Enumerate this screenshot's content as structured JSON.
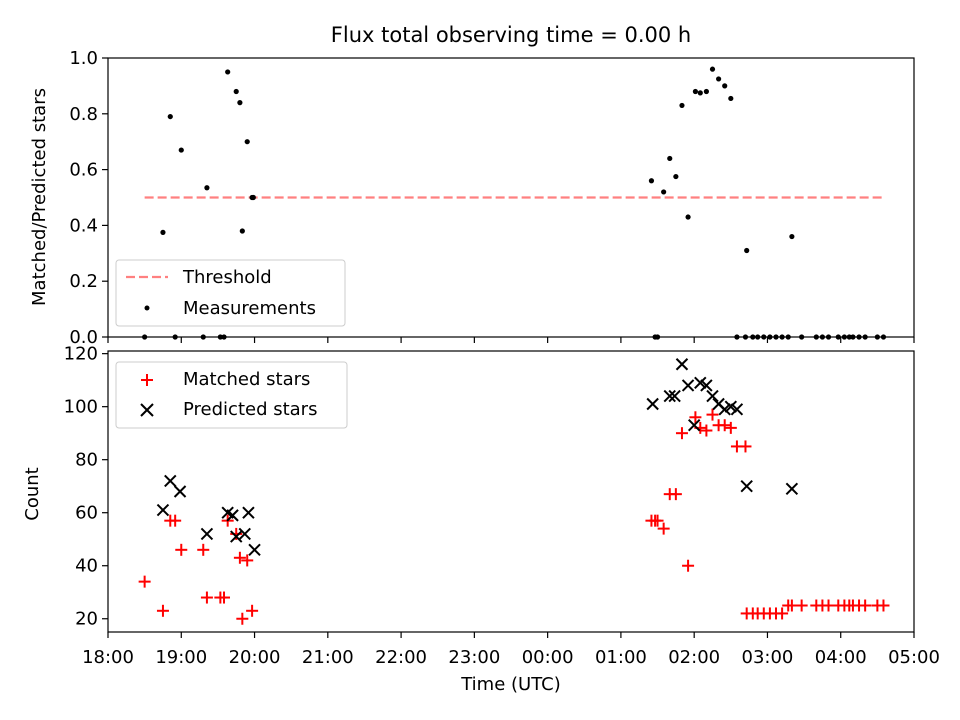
{
  "chart_data": [
    {
      "type": "scatter",
      "title": "Flux total observing time = 0.00 h",
      "xlabel": "",
      "ylabel": "Matched/Predicted stars",
      "ylim": [
        0,
        1.0
      ],
      "xlim": [
        "18:00",
        "05:00"
      ],
      "xticks": [
        "18:00",
        "19:00",
        "20:00",
        "21:00",
        "22:00",
        "23:00",
        "00:00",
        "01:00",
        "02:00",
        "03:00",
        "04:00",
        "05:00"
      ],
      "yticks": [
        "0.0",
        "0.2",
        "0.4",
        "0.6",
        "0.8",
        "1.0"
      ],
      "legend_position": "lower-left",
      "grid": false,
      "threshold": {
        "name": "Threshold",
        "value": 0.5,
        "x_start": "18:30",
        "x_end": "04:35",
        "color": "#ff8080"
      },
      "series": [
        {
          "name": "Measurements",
          "color": "#000000",
          "marker": "dot",
          "x": [
            "18:30",
            "18:45",
            "18:51",
            "18:55",
            "19:00",
            "19:18",
            "19:21",
            "19:32",
            "19:35",
            "19:38",
            "19:45",
            "19:48",
            "19:50",
            "19:54",
            "19:58",
            "19:59",
            "01:25",
            "01:28",
            "01:30",
            "01:35",
            "01:40",
            "01:45",
            "01:50",
            "01:55",
            "02:01",
            "02:05",
            "02:10",
            "02:15",
            "02:20",
            "02:25",
            "02:30",
            "02:35",
            "02:42",
            "02:43",
            "02:48",
            "02:52",
            "02:57",
            "03:02",
            "03:07",
            "03:12",
            "03:17",
            "03:20",
            "03:28",
            "03:40",
            "03:45",
            "03:50",
            "03:58",
            "04:03",
            "04:07",
            "04:10",
            "04:15",
            "04:20",
            "04:30",
            "04:35"
          ],
          "y": [
            0.0,
            0.375,
            0.79,
            0.0,
            0.67,
            0.0,
            0.535,
            0.0,
            0.0,
            0.95,
            0.88,
            0.84,
            0.38,
            0.7,
            0.5,
            0.5,
            0.56,
            0.0,
            0.0,
            0.52,
            0.64,
            0.575,
            0.83,
            0.43,
            0.88,
            0.875,
            0.88,
            0.96,
            0.925,
            0.9,
            0.855,
            0.0,
            0.0,
            0.31,
            0.0,
            0.0,
            0.0,
            0.0,
            0.0,
            0.0,
            0.0,
            0.36,
            0.0,
            0.0,
            0.0,
            0.0,
            0.0,
            0.0,
            0.0,
            0.0,
            0.0,
            0.0,
            0.0,
            0.0
          ]
        }
      ]
    },
    {
      "type": "scatter",
      "title": "",
      "xlabel": "Time (UTC)",
      "ylabel": "Count",
      "ylim": [
        15,
        121
      ],
      "xlim": [
        "18:00",
        "05:00"
      ],
      "xticks": [
        "18:00",
        "19:00",
        "20:00",
        "21:00",
        "22:00",
        "23:00",
        "00:00",
        "01:00",
        "02:00",
        "03:00",
        "04:00",
        "05:00"
      ],
      "yticks": [
        "20",
        "40",
        "60",
        "80",
        "100",
        "120"
      ],
      "legend_position": "upper-left",
      "grid": false,
      "series": [
        {
          "name": "Matched stars",
          "color": "#ff0000",
          "marker": "plus",
          "x": [
            "18:30",
            "18:45",
            "18:51",
            "18:55",
            "19:00",
            "19:18",
            "19:21",
            "19:32",
            "19:35",
            "19:38",
            "19:45",
            "19:48",
            "19:50",
            "19:54",
            "19:58",
            "01:25",
            "01:28",
            "01:30",
            "01:35",
            "01:40",
            "01:45",
            "01:50",
            "01:55",
            "02:01",
            "02:05",
            "02:10",
            "02:15",
            "02:20",
            "02:25",
            "02:30",
            "02:35",
            "02:42",
            "02:43",
            "02:48",
            "02:52",
            "02:57",
            "03:02",
            "03:07",
            "03:12",
            "03:17",
            "03:20",
            "03:28",
            "03:40",
            "03:45",
            "03:50",
            "03:58",
            "04:03",
            "04:07",
            "04:10",
            "04:15",
            "04:20",
            "04:30",
            "04:35"
          ],
          "y": [
            34,
            23,
            57,
            57,
            46,
            46,
            28,
            28,
            28,
            57,
            52,
            43,
            20,
            42,
            23,
            57,
            57,
            57,
            54,
            67,
            67,
            90,
            40,
            96,
            92,
            91,
            97,
            93,
            93,
            92,
            85,
            85,
            22,
            22,
            22,
            22,
            22,
            22,
            22,
            25,
            25,
            25,
            25,
            25,
            25,
            25,
            25,
            25,
            25,
            25,
            25,
            25,
            25
          ]
        },
        {
          "name": "Predicted stars",
          "color": "#000000",
          "marker": "x",
          "x": [
            "18:45",
            "18:51",
            "18:59",
            "19:21",
            "19:38",
            "19:42",
            "19:45",
            "19:52",
            "19:55",
            "20:00",
            "01:26",
            "01:40",
            "01:44",
            "01:50",
            "01:55",
            "02:00",
            "02:05",
            "02:10",
            "02:15",
            "02:20",
            "02:25",
            "02:30",
            "02:35",
            "02:43",
            "03:20"
          ],
          "y": [
            61,
            72,
            68,
            52,
            60,
            59,
            51,
            52,
            60,
            46,
            101,
            104,
            104,
            116,
            108,
            93,
            109,
            108,
            104,
            101,
            99,
            100,
            99,
            70,
            69
          ]
        }
      ]
    }
  ]
}
